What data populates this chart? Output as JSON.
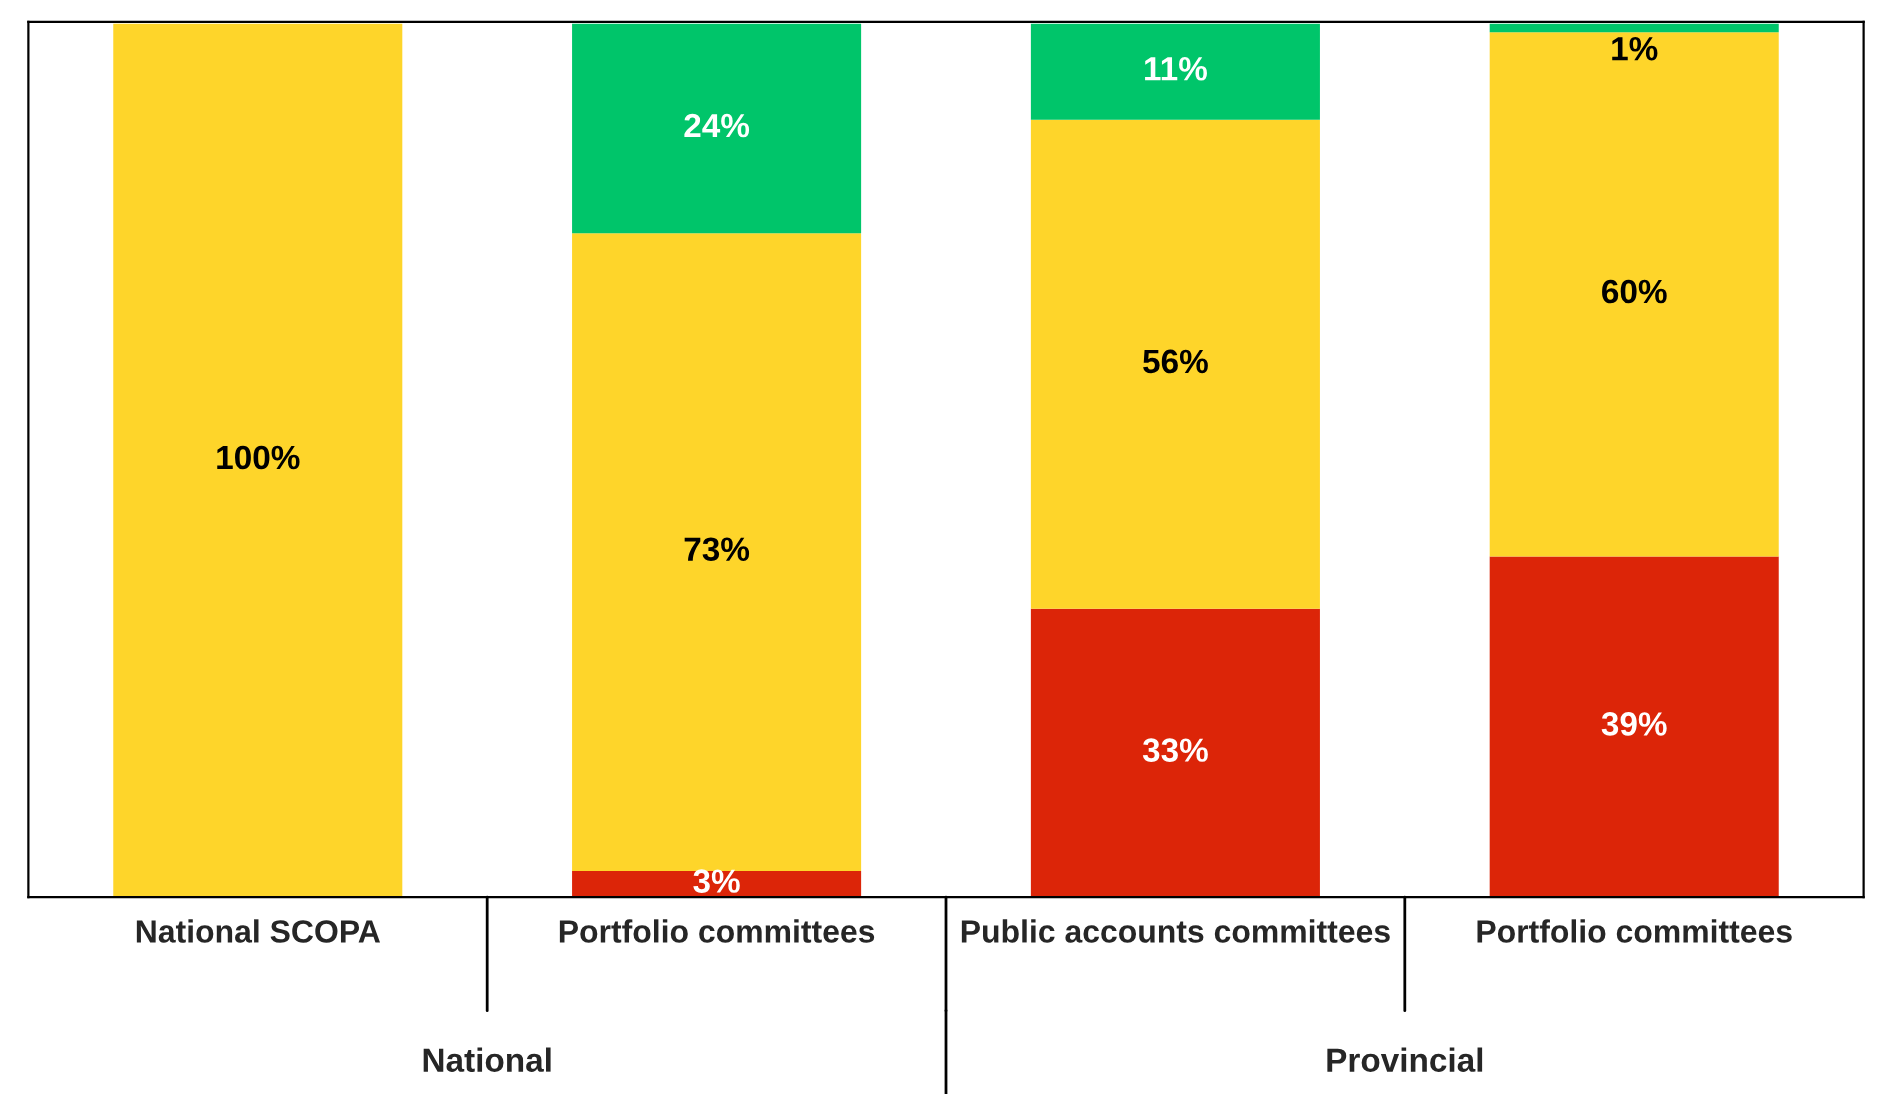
{
  "chart_data": {
    "type": "bar",
    "stacked": true,
    "categories": [
      "National SCOPA",
      "Portfolio committees",
      "Public accounts committees",
      "Portfolio committees"
    ],
    "series": [
      {
        "color": "#dc2508",
        "values": [
          0,
          3,
          33,
          39
        ],
        "value_labels": [
          null,
          "3%",
          "33%",
          "39%"
        ]
      },
      {
        "color": "#fed52a",
        "values": [
          100,
          73,
          56,
          60
        ],
        "value_labels": [
          "100%",
          "73%",
          "56%",
          "60%"
        ]
      },
      {
        "color": "#00c56a",
        "values": [
          0,
          24,
          11,
          1
        ],
        "value_labels": [
          null,
          "24%",
          "11%",
          "1%"
        ]
      }
    ],
    "annotations": [
      "National",
      "Provincial"
    ],
    "tick_labels": "x"
  }
}
